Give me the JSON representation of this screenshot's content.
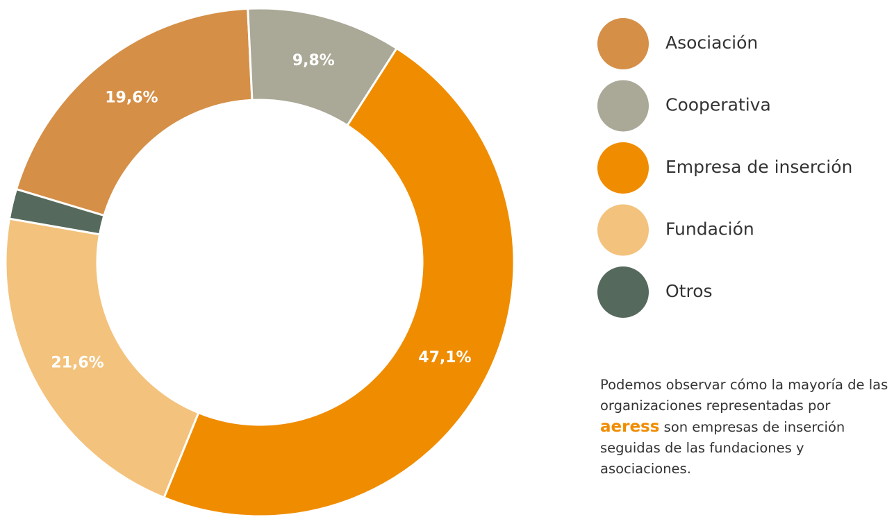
{
  "chart_data": {
    "type": "donut",
    "categories": [
      "Asociación",
      "Cooperativa",
      "Empresa de inserción",
      "Fundación",
      "Otros"
    ],
    "values": [
      19.6,
      9.8,
      47.1,
      21.6,
      1.9
    ],
    "value_labels": [
      "19,6%",
      "9,8%",
      "47,1%",
      "21,6%",
      null
    ],
    "colors": [
      "#d58f47",
      "#aaa896",
      "#f08c00",
      "#f3c27c",
      "#55695c"
    ],
    "legend": "right"
  },
  "annotation": {
    "before": "Podemos observar cómo la mayoría de las organizaciones representadas por",
    "brand": "aeress",
    "after": "son empresas de inserción seguidas de las fundaciones y asociaciones."
  }
}
